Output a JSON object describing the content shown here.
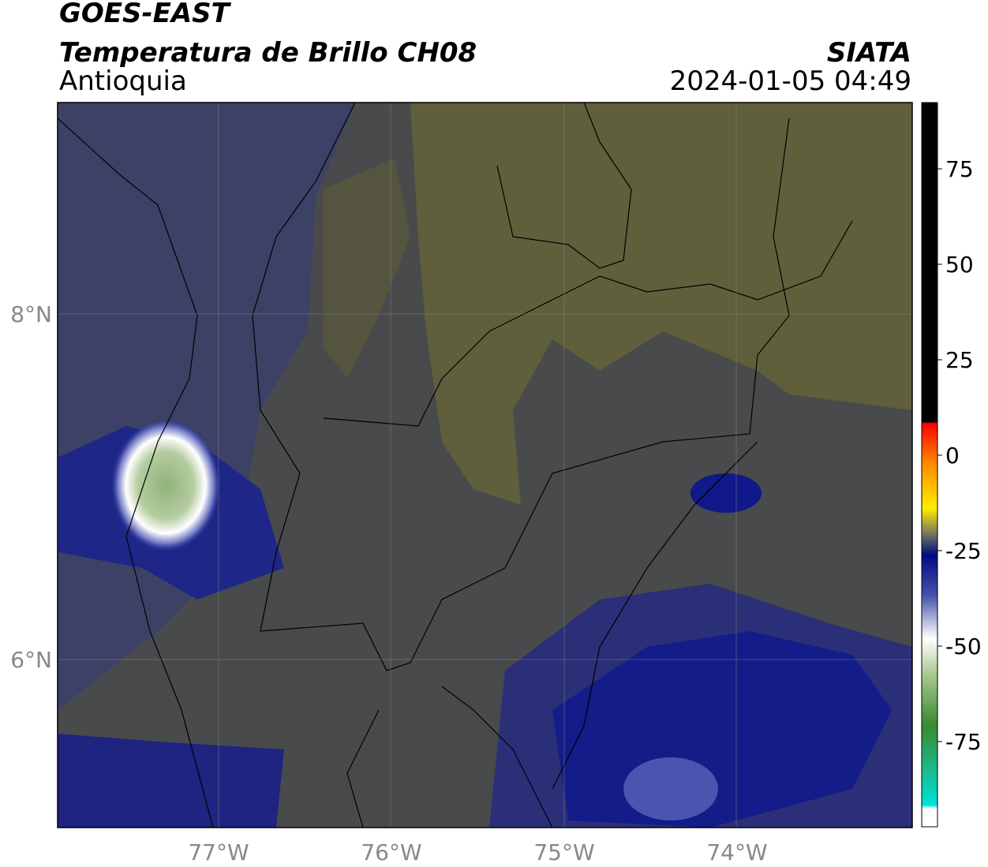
{
  "header": {
    "title": "GOES-EAST",
    "subtitle": "Temperatura de Brillo CH08",
    "region": "Antioquia",
    "source": "SIATA",
    "datetime": "2024-01-05 04:49"
  },
  "map": {
    "lat_ticks": [
      "8°N",
      "6°N"
    ],
    "lon_ticks": [
      "77°W",
      "76°W",
      "75°W",
      "74°W"
    ]
  },
  "colorbar": {
    "ticks": [
      75,
      50,
      25,
      0,
      -25,
      -50,
      -75
    ]
  }
}
